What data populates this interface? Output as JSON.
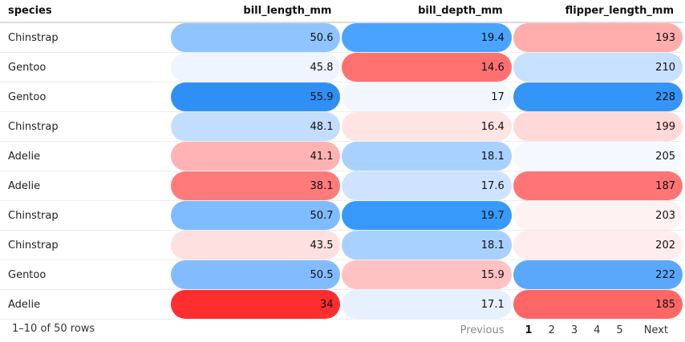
{
  "table": {
    "columns": [
      {
        "key": "species",
        "label": "species",
        "align": "left"
      },
      {
        "key": "bill_length_mm",
        "label": "bill_length_mm",
        "align": "right"
      },
      {
        "key": "bill_depth_mm",
        "label": "bill_depth_mm",
        "align": "right"
      },
      {
        "key": "flipper_length_mm",
        "label": "flipper_length_mm",
        "align": "right"
      }
    ],
    "rows": [
      {
        "species": "Chinstrap",
        "bill_length_mm": "50.6",
        "bill_depth_mm": "19.4",
        "flipper_length_mm": "193",
        "bg": {
          "bill_length_mm": "#8fc4ff",
          "bill_depth_mm": "#4aa3ff",
          "flipper_length_mm": "#ffadad"
        }
      },
      {
        "species": "Gentoo",
        "bill_length_mm": "45.8",
        "bill_depth_mm": "14.6",
        "flipper_length_mm": "210",
        "bg": {
          "bill_length_mm": "#eef5ff",
          "bill_depth_mm": "#ff7070",
          "flipper_length_mm": "#c8e0ff"
        }
      },
      {
        "species": "Gentoo",
        "bill_length_mm": "55.9",
        "bill_depth_mm": "17",
        "flipper_length_mm": "228",
        "bg": {
          "bill_length_mm": "#2f8ff5",
          "bill_depth_mm": "#f2f7ff",
          "flipper_length_mm": "#3594f7"
        }
      },
      {
        "species": "Chinstrap",
        "bill_length_mm": "48.1",
        "bill_depth_mm": "16.4",
        "flipper_length_mm": "199",
        "bg": {
          "bill_length_mm": "#c3ddff",
          "bill_depth_mm": "#ffe4e4",
          "flipper_length_mm": "#ffd8d8"
        }
      },
      {
        "species": "Adelie",
        "bill_length_mm": "41.1",
        "bill_depth_mm": "18.1",
        "flipper_length_mm": "205",
        "bg": {
          "bill_length_mm": "#ffb3b3",
          "bill_depth_mm": "#a9d1ff",
          "flipper_length_mm": "#f5f8ff"
        }
      },
      {
        "species": "Adelie",
        "bill_length_mm": "38.1",
        "bill_depth_mm": "17.6",
        "flipper_length_mm": "187",
        "bg": {
          "bill_length_mm": "#ff7a7a",
          "bill_depth_mm": "#cde3ff",
          "flipper_length_mm": "#ff7575"
        }
      },
      {
        "species": "Chinstrap",
        "bill_length_mm": "50.7",
        "bill_depth_mm": "19.7",
        "flipper_length_mm": "203",
        "bg": {
          "bill_length_mm": "#7fbbff",
          "bill_depth_mm": "#379afa",
          "flipper_length_mm": "#fff2f2"
        }
      },
      {
        "species": "Chinstrap",
        "bill_length_mm": "43.5",
        "bill_depth_mm": "18.1",
        "flipper_length_mm": "202",
        "bg": {
          "bill_length_mm": "#ffe0e0",
          "bill_depth_mm": "#a9d1ff",
          "flipper_length_mm": "#ffecec"
        }
      },
      {
        "species": "Gentoo",
        "bill_length_mm": "50.5",
        "bill_depth_mm": "15.9",
        "flipper_length_mm": "222",
        "bg": {
          "bill_length_mm": "#82bcff",
          "bill_depth_mm": "#ffc2c2",
          "flipper_length_mm": "#5aa8fb"
        }
      },
      {
        "species": "Adelie",
        "bill_length_mm": "34",
        "bill_depth_mm": "17.1",
        "flipper_length_mm": "185",
        "bg": {
          "bill_length_mm": "#ff2e2e",
          "bill_depth_mm": "#e6f0ff",
          "flipper_length_mm": "#ff6767"
        }
      }
    ]
  },
  "footer": {
    "row_info": "1–10 of 50 rows",
    "previous_label": "Previous",
    "next_label": "Next",
    "pages": [
      "1",
      "2",
      "3",
      "4",
      "5"
    ],
    "current_page": "1"
  },
  "colors": {
    "high": "#2f8ff5",
    "low": "#ff2e2e"
  }
}
